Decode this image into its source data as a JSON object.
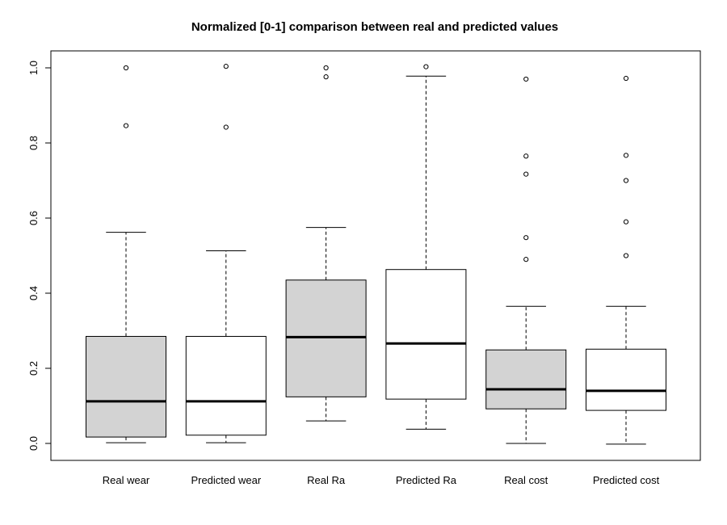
{
  "chart_data": {
    "type": "boxplot",
    "title": "Normalized [0-1] comparison between real and predicted values",
    "xlabel": "",
    "ylabel": "",
    "ylim": [
      0,
      1
    ],
    "y_ticks": [
      "0.0",
      "0.2",
      "0.4",
      "0.6",
      "0.8",
      "1.0"
    ],
    "grid": false,
    "categories": [
      "Real wear",
      "Predicted wear",
      "Real Ra",
      "Predicted Ra",
      "Real cost",
      "Predicted cost"
    ],
    "boxes": [
      {
        "name": "Real wear",
        "fill": "#d3d3d3",
        "whisker_low": 0.002,
        "q1": 0.017,
        "median": 0.112,
        "q3": 0.285,
        "whisker_high": 0.562,
        "outliers": [
          0.846,
          1.0
        ]
      },
      {
        "name": "Predicted wear",
        "fill": "#ffffff",
        "whisker_low": 0.002,
        "q1": 0.022,
        "median": 0.112,
        "q3": 0.285,
        "whisker_high": 0.513,
        "outliers": [
          0.842,
          1.004
        ]
      },
      {
        "name": "Real Ra",
        "fill": "#d3d3d3",
        "whisker_low": 0.06,
        "q1": 0.124,
        "median": 0.283,
        "q3": 0.435,
        "whisker_high": 0.575,
        "outliers": [
          0.976,
          1.0
        ]
      },
      {
        "name": "Predicted Ra",
        "fill": "#ffffff",
        "whisker_low": 0.038,
        "q1": 0.118,
        "median": 0.266,
        "q3": 0.463,
        "whisker_high": 0.978,
        "outliers": [
          1.003
        ]
      },
      {
        "name": "Real cost",
        "fill": "#d3d3d3",
        "whisker_low": 0.0,
        "q1": 0.092,
        "median": 0.144,
        "q3": 0.249,
        "whisker_high": 0.365,
        "outliers": [
          0.49,
          0.548,
          0.717,
          0.765,
          0.97
        ]
      },
      {
        "name": "Predicted cost",
        "fill": "#ffffff",
        "whisker_low": -0.002,
        "q1": 0.088,
        "median": 0.14,
        "q3": 0.251,
        "whisker_high": 0.365,
        "outliers": [
          0.5,
          0.59,
          0.7,
          0.767,
          0.972
        ]
      }
    ]
  }
}
